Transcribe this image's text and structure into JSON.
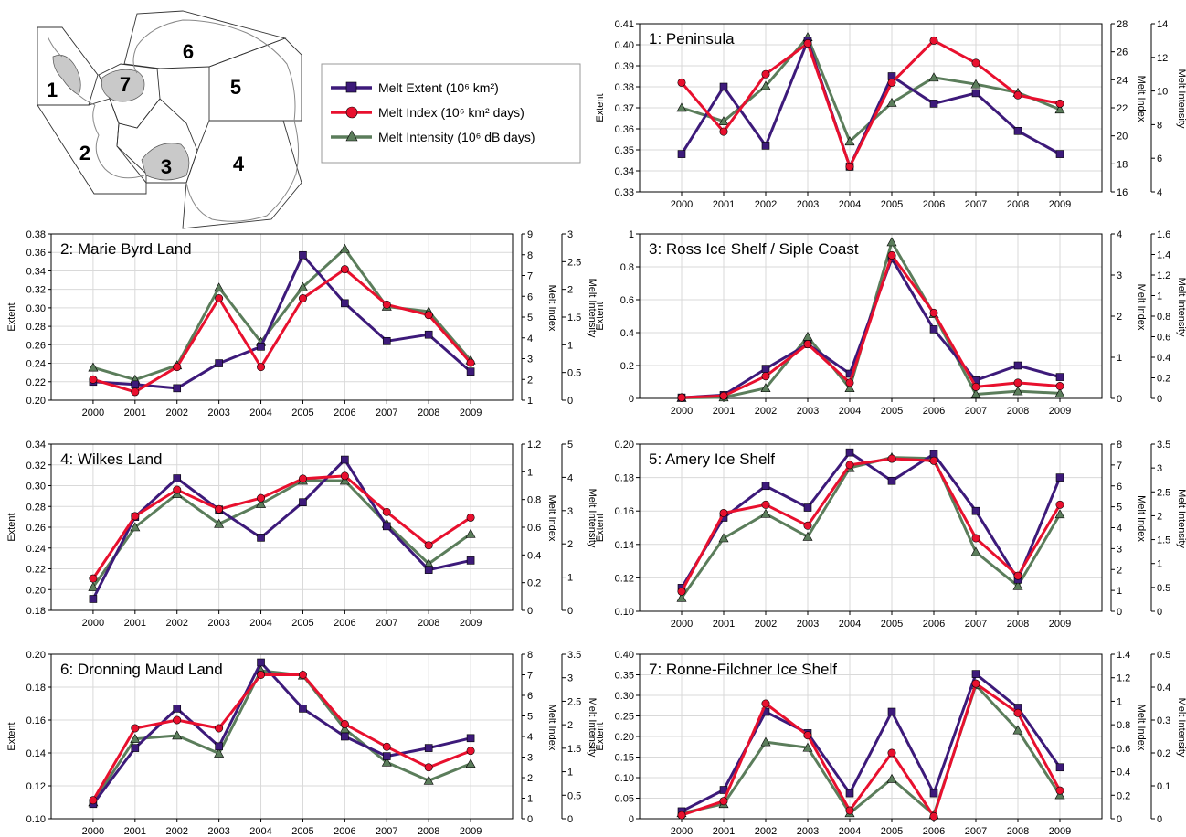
{
  "colors": {
    "extent": "#3d1a7a",
    "index": "#e8102e",
    "intensity": "#5b7d5b",
    "grid": "#d9d9d9",
    "frame": "#000000"
  },
  "legend": {
    "items": [
      {
        "key": "extent",
        "label": "Melt Extent (10⁶ km²)",
        "marker": "square"
      },
      {
        "key": "index",
        "label": "Melt Index (10⁶ km² days)",
        "marker": "circle"
      },
      {
        "key": "intensity",
        "label": "Melt Intensity (10⁶ dB days)",
        "marker": "triangle"
      }
    ]
  },
  "map": {
    "region_labels": [
      "1",
      "2",
      "3",
      "4",
      "5",
      "6",
      "7"
    ]
  },
  "chart_data": [
    {
      "type": "line",
      "title": "1: Peninsula",
      "x": [
        "2000",
        "2001",
        "2002",
        "2003",
        "2004",
        "2005",
        "2006",
        "2007",
        "2008",
        "2009"
      ],
      "ylabel": "Extent",
      "y2label": "Melt Index",
      "y3label": "Melt Intensity",
      "ylim": [
        0.33,
        0.41
      ],
      "yticks": [
        "0.33",
        "0.34",
        "0.35",
        "0.36",
        "0.37",
        "0.38",
        "0.39",
        "0.40",
        "0.41"
      ],
      "y2lim": [
        16,
        28
      ],
      "y2ticks": [
        "16",
        "18",
        "20",
        "22",
        "24",
        "26",
        "28"
      ],
      "y3lim": [
        4,
        14
      ],
      "y3ticks": [
        "4",
        "6",
        "8",
        "10",
        "12",
        "14"
      ],
      "grid": true,
      "series": [
        {
          "key": "extent",
          "axis": 1,
          "values": [
            0.348,
            0.38,
            0.352,
            0.402,
            0.342,
            0.385,
            0.372,
            0.377,
            0.359,
            0.348
          ]
        },
        {
          "key": "index",
          "axis": 2,
          "values": [
            23.8,
            20.3,
            24.4,
            26.6,
            17.8,
            23.8,
            26.8,
            25.2,
            22.9,
            22.3
          ]
        },
        {
          "key": "intensity",
          "axis": 3,
          "values": [
            9.0,
            8.2,
            10.3,
            13.2,
            7.0,
            9.3,
            10.8,
            10.4,
            9.9,
            8.9
          ]
        }
      ]
    },
    {
      "type": "line",
      "title": "2: Marie Byrd Land",
      "x": [
        "2000",
        "2001",
        "2002",
        "2003",
        "2004",
        "2005",
        "2006",
        "2007",
        "2008",
        "2009"
      ],
      "ylabel": "Extent",
      "y2label": "Melt Index",
      "y3label": "Melt Intensity",
      "ylim": [
        0.2,
        0.38
      ],
      "yticks": [
        "0.20",
        "0.22",
        "0.24",
        "0.26",
        "0.28",
        "0.30",
        "0.32",
        "0.34",
        "0.36",
        "0.38"
      ],
      "y2lim": [
        1,
        9
      ],
      "y2ticks": [
        "1",
        "2",
        "3",
        "4",
        "5",
        "6",
        "7",
        "8",
        "9"
      ],
      "y3lim": [
        0,
        3
      ],
      "y3ticks": [
        "0",
        "0.5",
        "1",
        "1.5",
        "2",
        "2.5",
        "3"
      ],
      "grid": true,
      "series": [
        {
          "key": "extent",
          "axis": 1,
          "values": [
            0.22,
            0.217,
            0.213,
            0.24,
            0.258,
            0.357,
            0.305,
            0.264,
            0.271,
            0.231
          ]
        },
        {
          "key": "index",
          "axis": 2,
          "values": [
            2.0,
            1.4,
            2.6,
            5.9,
            2.6,
            5.9,
            7.3,
            5.6,
            5.1,
            2.8
          ]
        },
        {
          "key": "intensity",
          "axis": 3,
          "values": [
            0.59,
            0.37,
            0.63,
            2.03,
            1.05,
            2.04,
            2.73,
            1.69,
            1.6,
            0.72
          ]
        }
      ]
    },
    {
      "type": "line",
      "title": "3: Ross Ice Shelf / Siple Coast",
      "x": [
        "2000",
        "2001",
        "2002",
        "2003",
        "2004",
        "2005",
        "2006",
        "2007",
        "2008",
        "2009"
      ],
      "ylabel": "Extent",
      "y2label": "Melt Index",
      "y3label": "Melt Intensity",
      "ylim": [
        0,
        1
      ],
      "yticks": [
        "0",
        "0.2",
        "0.4",
        "0.6",
        "0.8",
        "1"
      ],
      "y2lim": [
        0,
        4
      ],
      "y2ticks": [
        "0",
        "1",
        "2",
        "3",
        "4"
      ],
      "y3lim": [
        0,
        1.6
      ],
      "y3ticks": [
        "0",
        "0.2",
        "0.4",
        "0.6",
        "0.8",
        "1",
        "1.2",
        "1.4",
        "1.6"
      ],
      "grid": true,
      "series": [
        {
          "key": "extent",
          "axis": 1,
          "values": [
            0.005,
            0.02,
            0.18,
            0.33,
            0.15,
            0.85,
            0.42,
            0.11,
            0.2,
            0.13
          ]
        },
        {
          "key": "index",
          "axis": 2,
          "values": [
            0.02,
            0.06,
            0.54,
            1.32,
            0.38,
            3.48,
            2.08,
            0.28,
            0.38,
            0.3
          ]
        },
        {
          "key": "intensity",
          "axis": 3,
          "values": [
            0.005,
            0.01,
            0.1,
            0.6,
            0.1,
            1.52,
            0.82,
            0.04,
            0.07,
            0.05
          ]
        }
      ]
    },
    {
      "type": "line",
      "title": "4: Wilkes Land",
      "x": [
        "2000",
        "2001",
        "2002",
        "2003",
        "2004",
        "2005",
        "2006",
        "2007",
        "2008",
        "2009"
      ],
      "ylabel": "Extent",
      "y2label": "Melt Index",
      "y3label": "Melt Intensity",
      "ylim": [
        0.18,
        0.34
      ],
      "yticks": [
        "0.18",
        "0.20",
        "0.22",
        "0.24",
        "0.26",
        "0.28",
        "0.30",
        "0.32",
        "0.34"
      ],
      "y2lim": [
        0,
        1.2
      ],
      "y2ticks": [
        "0",
        "0.2",
        "0.4",
        "0.6",
        "0.8",
        "1",
        "1.2"
      ],
      "y3lim": [
        0,
        5
      ],
      "y3ticks": [
        "0",
        "1",
        "2",
        "3",
        "4",
        "5"
      ],
      "grid": true,
      "series": [
        {
          "key": "extent",
          "axis": 1,
          "values": [
            0.191,
            0.27,
            0.307,
            0.277,
            0.25,
            0.284,
            0.325,
            0.261,
            0.219,
            0.228
          ]
        },
        {
          "key": "index",
          "axis": 2,
          "values": [
            0.23,
            0.68,
            0.87,
            0.73,
            0.81,
            0.95,
            0.97,
            0.71,
            0.47,
            0.67
          ]
        },
        {
          "key": "intensity",
          "axis": 3,
          "values": [
            0.7,
            2.5,
            3.5,
            2.6,
            3.2,
            3.9,
            3.9,
            2.6,
            1.4,
            2.3
          ]
        }
      ]
    },
    {
      "type": "line",
      "title": "5: Amery Ice Shelf",
      "x": [
        "2000",
        "2001",
        "2002",
        "2003",
        "2004",
        "2005",
        "2006",
        "2007",
        "2008",
        "2009"
      ],
      "ylabel": "Extent",
      "y2label": "Melt Index",
      "y3label": "Melt Intensity",
      "ylim": [
        0.1,
        0.2
      ],
      "yticks": [
        "0.10",
        "0.12",
        "0.14",
        "0.16",
        "0.18",
        "0.20"
      ],
      "y2lim": [
        0,
        8
      ],
      "y2ticks": [
        "0",
        "1",
        "2",
        "3",
        "4",
        "5",
        "6",
        "7",
        "8"
      ],
      "y3lim": [
        0,
        3.5
      ],
      "y3ticks": [
        "0",
        "0.5",
        "1",
        "1.5",
        "2",
        "2.5",
        "3",
        "3.5"
      ],
      "grid": true,
      "series": [
        {
          "key": "extent",
          "axis": 1,
          "values": [
            0.114,
            0.156,
            0.175,
            0.162,
            0.195,
            0.178,
            0.194,
            0.16,
            0.119,
            0.18
          ]
        },
        {
          "key": "index",
          "axis": 2,
          "values": [
            0.95,
            4.7,
            5.1,
            4.1,
            7.0,
            7.3,
            7.2,
            3.5,
            1.7,
            5.1
          ]
        },
        {
          "key": "intensity",
          "axis": 3,
          "values": [
            0.28,
            1.53,
            2.04,
            1.56,
            3.0,
            3.22,
            3.2,
            1.24,
            0.53,
            2.03
          ]
        }
      ]
    },
    {
      "type": "line",
      "title": "6: Dronning Maud Land",
      "x": [
        "2000",
        "2001",
        "2002",
        "2003",
        "2004",
        "2005",
        "2006",
        "2007",
        "2008",
        "2009"
      ],
      "ylabel": "Extent",
      "y2label": "Melt Index",
      "y3label": "Melt Intensity",
      "ylim": [
        0.1,
        0.2
      ],
      "yticks": [
        "0.10",
        "0.12",
        "0.14",
        "0.16",
        "0.18",
        "0.20"
      ],
      "y2lim": [
        0,
        8
      ],
      "y2ticks": [
        "0",
        "1",
        "2",
        "3",
        "4",
        "5",
        "6",
        "7",
        "8"
      ],
      "y3lim": [
        0,
        3.5
      ],
      "y3ticks": [
        "0",
        "0.5",
        "1",
        "1.5",
        "2",
        "2.5",
        "3",
        "3.5"
      ],
      "grid": true,
      "series": [
        {
          "key": "extent",
          "axis": 1,
          "values": [
            0.109,
            0.143,
            0.167,
            0.144,
            0.195,
            0.167,
            0.15,
            0.138,
            0.143,
            0.149
          ]
        },
        {
          "key": "index",
          "axis": 2,
          "values": [
            0.9,
            4.4,
            4.8,
            4.4,
            7.0,
            7.0,
            4.6,
            3.5,
            2.5,
            3.3
          ]
        },
        {
          "key": "intensity",
          "axis": 3,
          "values": [
            0.35,
            1.7,
            1.77,
            1.39,
            3.15,
            3.05,
            1.91,
            1.2,
            0.81,
            1.17
          ]
        }
      ]
    },
    {
      "type": "line",
      "title": "7: Ronne-Filchner Ice Shelf",
      "x": [
        "2000",
        "2001",
        "2002",
        "2003",
        "2004",
        "2005",
        "2006",
        "2007",
        "2008",
        "2009"
      ],
      "ylabel": "Extent",
      "y2label": "Melt Index",
      "y3label": "Melt Intensity",
      "ylim": [
        0,
        0.4
      ],
      "yticks": [
        "0",
        "0.05",
        "0.10",
        "0.15",
        "0.20",
        "0.25",
        "0.30",
        "0.35",
        "0.40"
      ],
      "y2lim": [
        0,
        1.4
      ],
      "y2ticks": [
        "0",
        "0.2",
        "0.4",
        "0.6",
        "0.8",
        "1",
        "1.2",
        "1.4"
      ],
      "y3lim": [
        0,
        0.5
      ],
      "y3ticks": [
        "0",
        "0.1",
        "0.2",
        "0.3",
        "0.4",
        "0.5"
      ],
      "grid": true,
      "series": [
        {
          "key": "extent",
          "axis": 1,
          "values": [
            0.018,
            0.07,
            0.26,
            0.208,
            0.062,
            0.26,
            0.062,
            0.352,
            0.27,
            0.125
          ]
        },
        {
          "key": "index",
          "axis": 2,
          "values": [
            0.03,
            0.15,
            0.98,
            0.71,
            0.07,
            0.56,
            0.02,
            1.15,
            0.9,
            0.24
          ]
        },
        {
          "key": "intensity",
          "axis": 3,
          "values": [
            0.017,
            0.045,
            0.233,
            0.216,
            0.017,
            0.121,
            0.012,
            0.406,
            0.269,
            0.072
          ]
        }
      ]
    }
  ]
}
